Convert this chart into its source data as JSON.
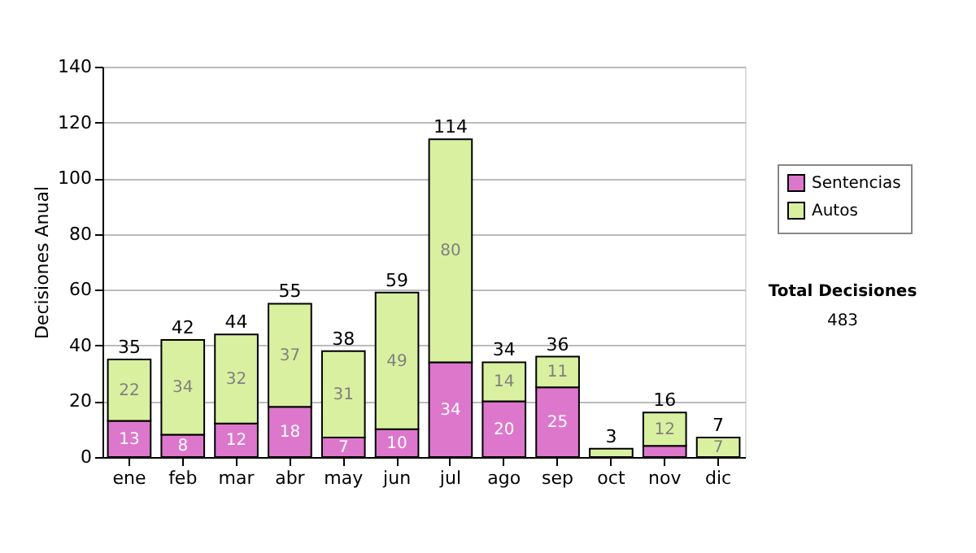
{
  "chart_data": {
    "type": "bar",
    "stacked": true,
    "ylabel": "Decisiones Anual",
    "categories": [
      "ene",
      "feb",
      "mar",
      "abr",
      "may",
      "jun",
      "jul",
      "ago",
      "sep",
      "oct",
      "nov",
      "dic"
    ],
    "series": [
      {
        "name": "Sentencias",
        "color": "#dd77cc",
        "values": [
          13,
          8,
          12,
          18,
          7,
          10,
          34,
          20,
          25,
          0,
          4,
          0
        ],
        "value_labels": [
          "13",
          "8",
          "12",
          "18",
          "7",
          "10",
          "34",
          "20",
          "25",
          null,
          null,
          null
        ]
      },
      {
        "name": "Autos",
        "color": "#d9f0a0",
        "values": [
          22,
          34,
          32,
          37,
          31,
          49,
          80,
          14,
          11,
          3,
          12,
          7
        ],
        "value_labels": [
          "22",
          "34",
          "32",
          "37",
          "31",
          "49",
          "80",
          "14",
          "11",
          null,
          "12",
          "7"
        ]
      }
    ],
    "totals": [
      "35",
      "42",
      "44",
      "55",
      "38",
      "59",
      "114",
      "34",
      "36",
      "3",
      "16",
      "7"
    ],
    "ylim": [
      0,
      140
    ],
    "yticks": [
      0,
      20,
      40,
      60,
      80,
      100,
      120,
      140
    ],
    "grid": "y",
    "legend": "right",
    "annotations": [
      "Total Decisiones",
      "483"
    ]
  }
}
